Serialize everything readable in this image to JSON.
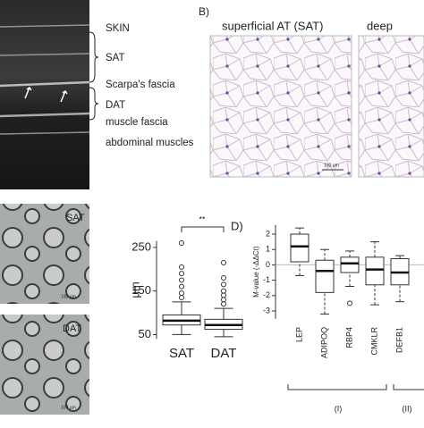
{
  "panels": {
    "a_labels": [
      "SKIN",
      "SAT",
      "Scarpa's fascia",
      "DAT",
      "muscle fascia",
      "abdominal muscles"
    ],
    "b_label": "B)",
    "b_titles": [
      "superficial AT (SAT)",
      "deep"
    ],
    "b_scale_bar": "100 µm",
    "c_image_labels": [
      "SAT",
      "DAT"
    ],
    "c_scale_bars": [
      "100 µm",
      "100 µm"
    ]
  },
  "chart_data": [
    {
      "type": "box",
      "ylabel": "µm",
      "annotation": "**",
      "categories": [
        "SAT",
        "DAT"
      ],
      "series": [
        {
          "min": 50,
          "q1": 72,
          "median": 82,
          "q3": 95,
          "max": 125,
          "outliers": [
            135,
            145,
            160,
            175,
            190,
            205,
            260
          ]
        },
        {
          "min": 45,
          "q1": 62,
          "median": 72,
          "q3": 85,
          "max": 110,
          "outliers": [
            120,
            130,
            140,
            150,
            165,
            180,
            215
          ]
        }
      ],
      "ylim": [
        40,
        265
      ],
      "yticks": [
        50,
        150,
        250
      ]
    },
    {
      "type": "box",
      "panel_label": "D)",
      "ylabel": "M-value (-ΔΔCt)",
      "categories": [
        "LEP",
        "ADIPOQ",
        "RBP4",
        "CMKLR",
        "DEFB1"
      ],
      "series": [
        {
          "min": -0.7,
          "q1": 0.2,
          "median": 1.2,
          "q3": 2.0,
          "max": 2.4,
          "outliers": []
        },
        {
          "min": -3.2,
          "q1": -1.8,
          "median": -0.4,
          "q3": 0.3,
          "max": 1.0,
          "outliers": []
        },
        {
          "min": -1.4,
          "q1": -0.5,
          "median": 0.1,
          "q3": 0.5,
          "max": 0.9,
          "outliers": [
            -2.5
          ]
        },
        {
          "min": -2.6,
          "q1": -1.3,
          "median": -0.3,
          "q3": 0.5,
          "max": 1.5,
          "outliers": []
        },
        {
          "min": -2.4,
          "q1": -1.3,
          "median": -0.5,
          "q3": 0.4,
          "max": 0.6,
          "outliers": []
        }
      ],
      "groups": [
        "(I)",
        "(II)"
      ],
      "reference_line": 0,
      "ylim": [
        -3.5,
        2.6
      ],
      "yticks": [
        -3,
        -2,
        -1,
        0,
        1,
        2
      ]
    }
  ]
}
